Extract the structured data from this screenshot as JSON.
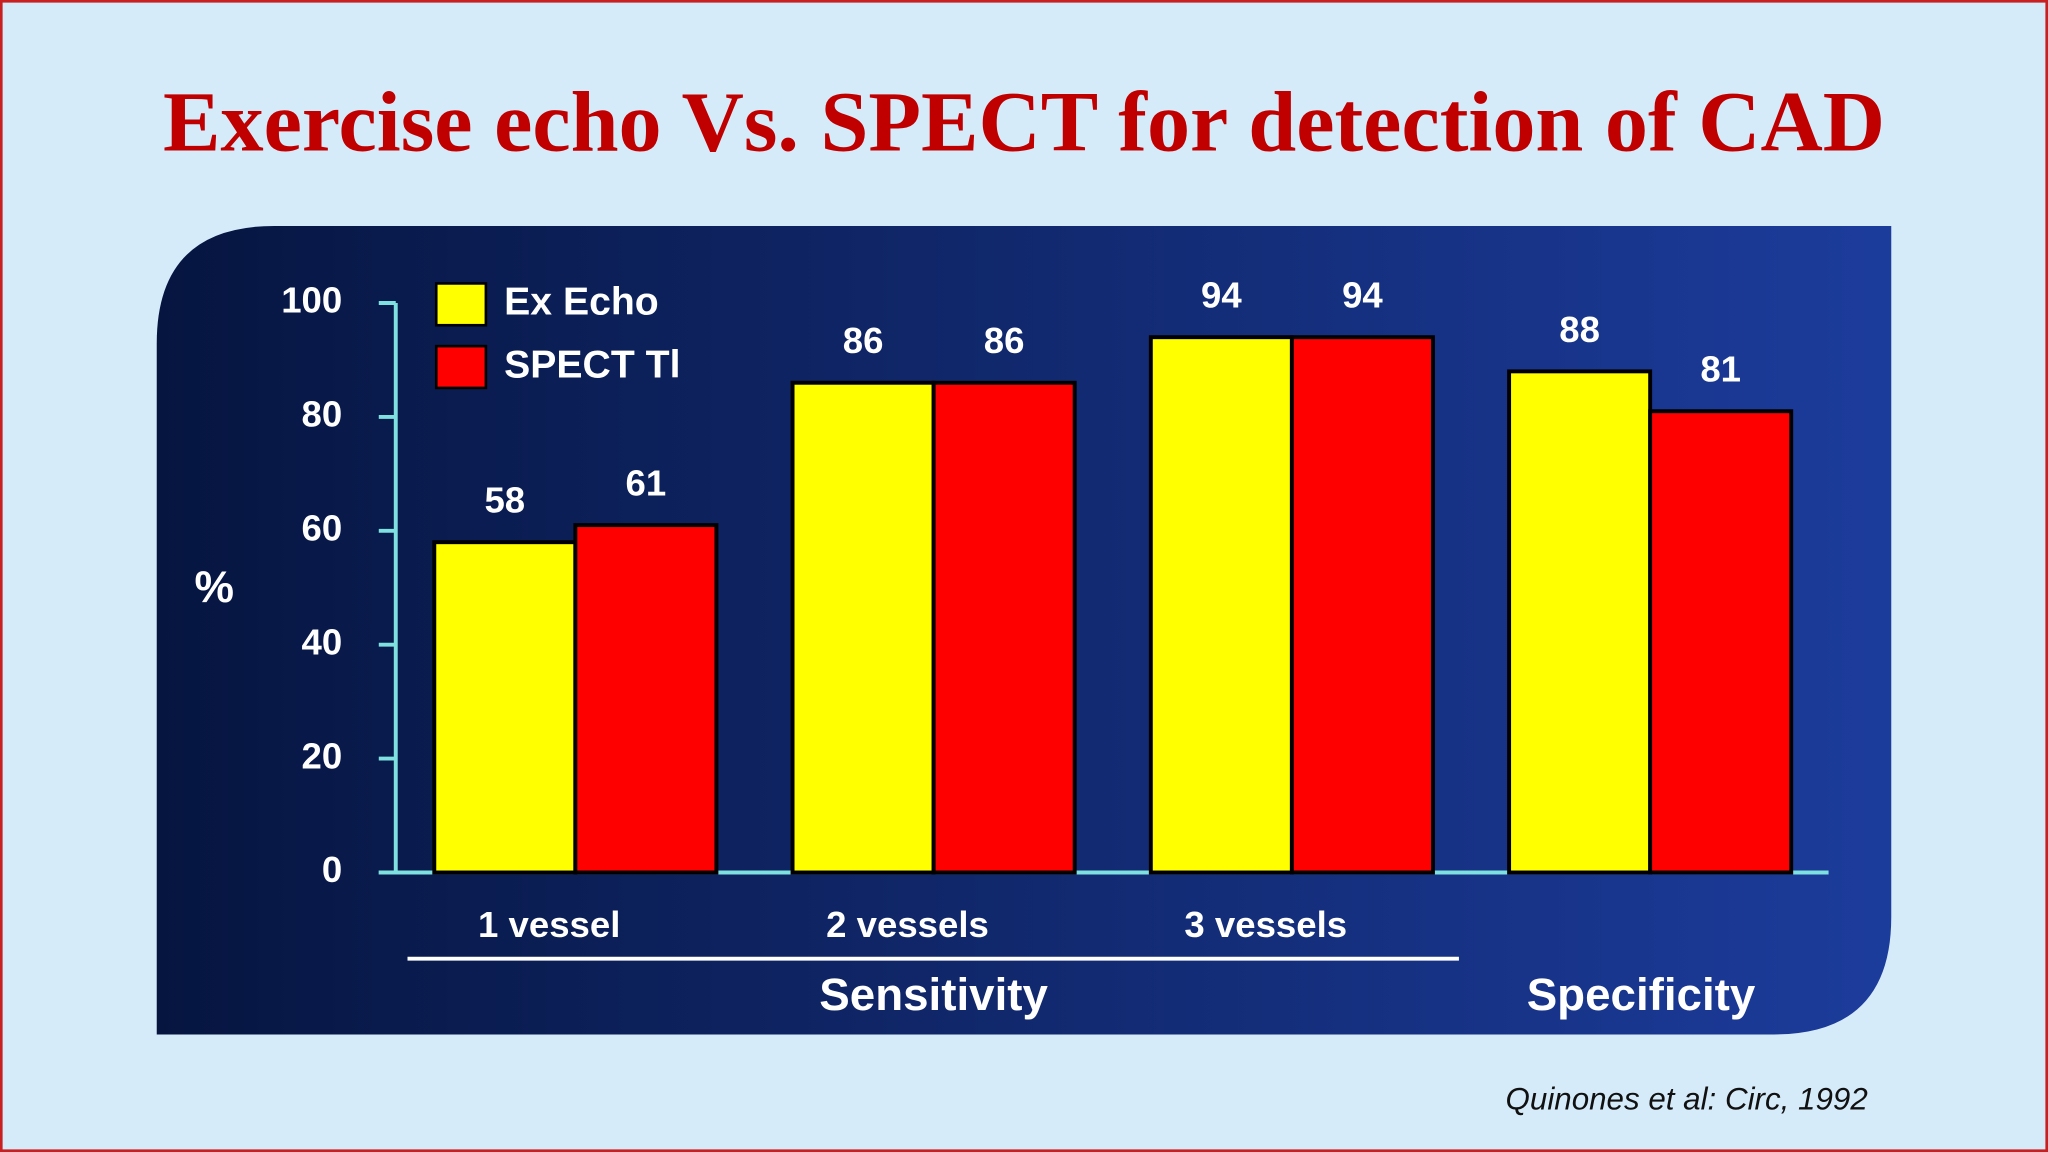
{
  "chart_data": {
    "type": "bar",
    "title": "Exercise echo Vs. SPECT for detection of CAD",
    "y_label": "%",
    "categories": [
      "1 vessel",
      "2 vessels",
      "3 vessels",
      null
    ],
    "group_labels": [
      "Sensitivity",
      "Specificity"
    ],
    "series": [
      {
        "name": "Ex Echo",
        "color": "#ffff00",
        "values": [
          58,
          86,
          94,
          88
        ]
      },
      {
        "name": "SPECT Tl",
        "color": "#ff0000",
        "values": [
          61,
          86,
          94,
          81
        ]
      }
    ],
    "ylim": [
      0,
      100
    ],
    "yticks": [
      0,
      20,
      40,
      60,
      80,
      100
    ],
    "legend": "top-left",
    "source": "Quinones et al: Circ, 1992"
  }
}
